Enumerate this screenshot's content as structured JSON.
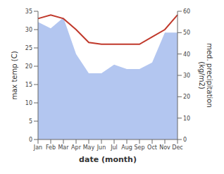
{
  "chart_data": {
    "type": "line",
    "xlabel": "date (month)",
    "ylabel": "max temp (C)",
    "y2label": "med. precipitation\n(kg/m2)",
    "categories": [
      "Jan",
      "Feb",
      "Mar",
      "Apr",
      "May",
      "Jun",
      "Jul",
      "Aug",
      "Sep",
      "Oct",
      "Nov",
      "Dec"
    ],
    "series": [
      {
        "type": "area",
        "axis": "y2",
        "color": "#b3c6f0",
        "values": [
          55,
          52,
          57,
          40,
          31,
          31,
          35,
          33,
          33,
          36,
          50,
          50
        ]
      },
      {
        "type": "line",
        "color": "#c0392b",
        "values": [
          33,
          34,
          33,
          30,
          26.5,
          26,
          26,
          26,
          26,
          28,
          30,
          34
        ]
      }
    ],
    "ylim": [
      0,
      35
    ],
    "yticks": [
      0,
      5,
      10,
      15,
      20,
      25,
      30,
      35
    ],
    "y2lim": [
      0,
      60
    ],
    "y2ticks": [
      0,
      10,
      20,
      30,
      40,
      50,
      60
    ],
    "grid": false
  }
}
